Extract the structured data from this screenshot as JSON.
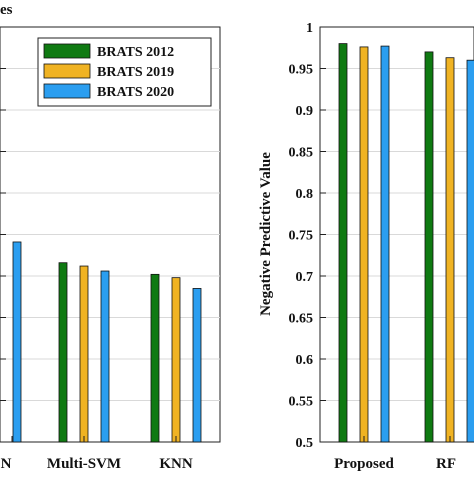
{
  "colors": {
    "BRATS 2012": "#0f7a12",
    "BRATS 2019": "#f0b323",
    "BRATS 2020": "#2b9ef0"
  },
  "chart_data": [
    {
      "type": "bar",
      "title": "",
      "title_fragment": "es",
      "xlabel": "",
      "ylabel": "",
      "categories_visible": [
        "N",
        "Multi-SVM",
        "KNN"
      ],
      "ylim": [
        0.5,
        1.0
      ],
      "grid": true,
      "legend": "top-right",
      "series": [
        {
          "name": "BRATS 2012",
          "values": [
            null,
            0.716,
            0.702
          ]
        },
        {
          "name": "BRATS 2019",
          "values": [
            null,
            0.712,
            0.698
          ]
        },
        {
          "name": "BRATS 2020",
          "values": [
            0.741,
            0.706,
            0.685
          ]
        }
      ]
    },
    {
      "type": "bar",
      "title": "",
      "xlabel": "",
      "ylabel": "Negative Predictive Value",
      "categories": [
        "Proposed",
        "RF"
      ],
      "yticks": [
        "0.5",
        "0.55",
        "0.6",
        "0.65",
        "0.7",
        "0.75",
        "0.8",
        "0.85",
        "0.9",
        "0.95",
        "1"
      ],
      "ylim": [
        0.5,
        1.0
      ],
      "grid": true,
      "series": [
        {
          "name": "BRATS 2012",
          "values": [
            0.98,
            0.97
          ]
        },
        {
          "name": "BRATS 2019",
          "values": [
            0.976,
            0.963
          ]
        },
        {
          "name": "BRATS 2020",
          "values": [
            0.977,
            0.96
          ]
        }
      ]
    }
  ]
}
